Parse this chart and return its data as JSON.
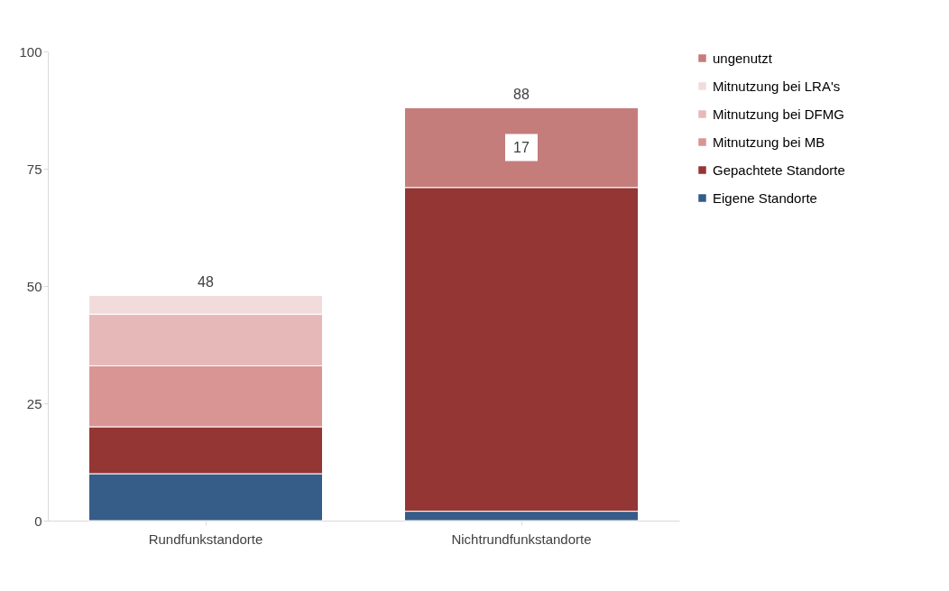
{
  "chart_data": {
    "type": "bar",
    "stacked": true,
    "categories": [
      "Rundfunkstandorte",
      "Nichtrundfunkstandorte"
    ],
    "series": [
      {
        "name": "Eigene Standorte",
        "color": "#365c88",
        "values": [
          10,
          2
        ]
      },
      {
        "name": "Gepachtete Standorte",
        "color": "#943634",
        "values": [
          10,
          69
        ]
      },
      {
        "name": "Mitnutzung bei MB",
        "color": "#d99594",
        "values": [
          13,
          0
        ]
      },
      {
        "name": "Mitnutzung bei DFMG",
        "color": "#e6b9b8",
        "values": [
          11,
          0
        ]
      },
      {
        "name": "Mitnutzung bei LRA's",
        "color": "#f2dcdb",
        "values": [
          4,
          0
        ]
      },
      {
        "name": "ungenutzt",
        "color": "#c47d7b",
        "values": [
          0,
          17
        ],
        "value_labels": [
          null,
          "17"
        ]
      }
    ],
    "totals": [
      "48",
      "88"
    ],
    "ylim": [
      0,
      100
    ],
    "yticks": [
      0,
      25,
      50,
      75,
      100
    ],
    "grid": false,
    "legend": "right"
  }
}
